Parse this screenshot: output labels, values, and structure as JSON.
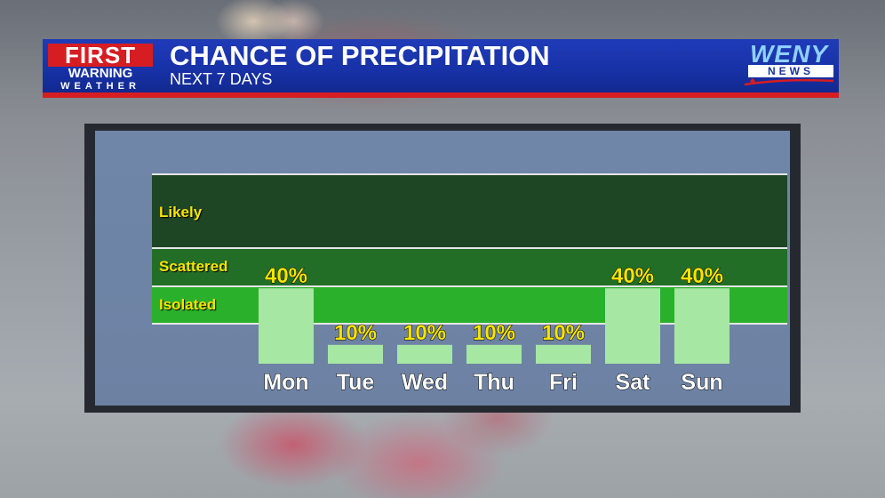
{
  "header": {
    "logo_first": "FIRST",
    "logo_warning": "WARNING",
    "logo_weather": "WEATHER",
    "title": "CHANCE OF PRECIPITATION",
    "subtitle": "NEXT 7 DAYS",
    "station_name": "WENY",
    "station_sub": "NEWS"
  },
  "colors": {
    "header_blue": "#1731a6",
    "accent_red": "#d61d22",
    "likely_zone": "#1e4524",
    "scattered_zone": "#226e27",
    "isolated_zone": "#2bb02b",
    "bar": "#a6e7a4",
    "value_label": "#f7e400"
  },
  "chart_data": {
    "type": "bar",
    "title": "CHANCE OF PRECIPITATION",
    "subtitle": "NEXT 7 DAYS",
    "categories": [
      "Mon",
      "Tue",
      "Wed",
      "Thu",
      "Fri",
      "Sat",
      "Sun"
    ],
    "values": [
      40,
      10,
      10,
      10,
      10,
      40,
      40
    ],
    "value_labels": [
      "40%",
      "10%",
      "10%",
      "10%",
      "10%",
      "40%",
      "40%"
    ],
    "zones": [
      "Likely",
      "Scattered",
      "Isolated"
    ],
    "ylim": [
      0,
      100
    ],
    "grid": false,
    "legend": "none"
  }
}
